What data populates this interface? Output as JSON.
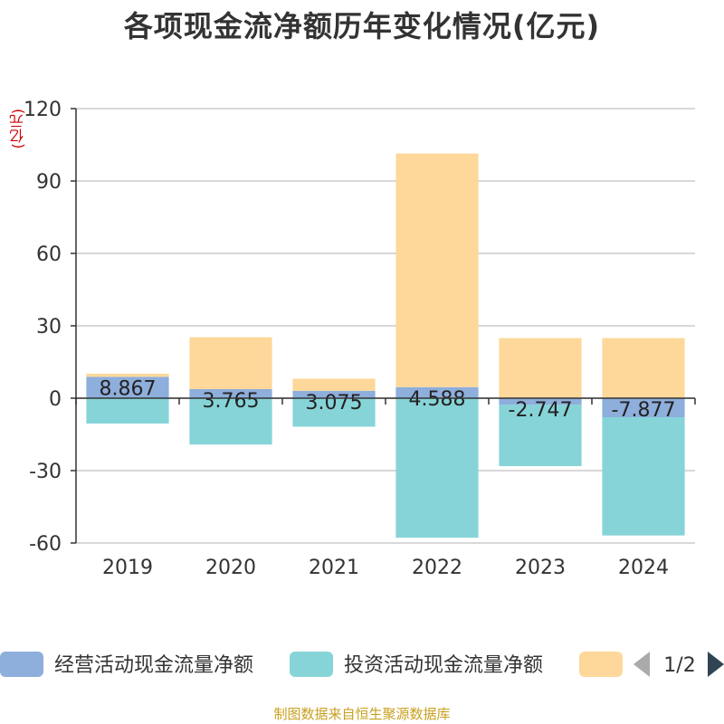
{
  "title": "各项现金流净额历年变化情况(亿元)",
  "unit_label": "(亿元)",
  "source": "制图数据来自恒生聚源数据库",
  "legend": {
    "items": [
      {
        "name": "经营活动现金流量净额",
        "color": "#8eaedb"
      },
      {
        "name": "投资活动现金流量净额",
        "color": "#86d4d8"
      },
      {
        "name": "",
        "color": "#fdd89a"
      }
    ],
    "page": "1/2"
  },
  "chart_data": {
    "type": "bar",
    "stacked": true,
    "categories": [
      "2019",
      "2020",
      "2021",
      "2022",
      "2023",
      "2024"
    ],
    "series": [
      {
        "name": "经营活动现金流量净额",
        "color": "#8eaedb",
        "values": [
          8.867,
          3.765,
          3.075,
          4.588,
          -2.747,
          -7.877
        ],
        "labels": [
          "8.867",
          "3.765",
          "3.075",
          "4.588",
          "-2.747",
          "-7.877"
        ]
      },
      {
        "name": "投资活动现金流量净额",
        "color": "#86d4d8",
        "values": [
          -10.5,
          -19.2,
          -11.8,
          -57.8,
          -25.4,
          -49.0
        ]
      },
      {
        "color": "#fdd89a",
        "values": [
          1.3,
          21.5,
          5.0,
          96.8,
          24.9,
          24.9
        ]
      }
    ],
    "ylim": [
      -60,
      120
    ],
    "yticks": [
      -60,
      -30,
      0,
      30,
      60,
      90,
      120
    ],
    "grid": true,
    "legend_position": "bottom"
  }
}
